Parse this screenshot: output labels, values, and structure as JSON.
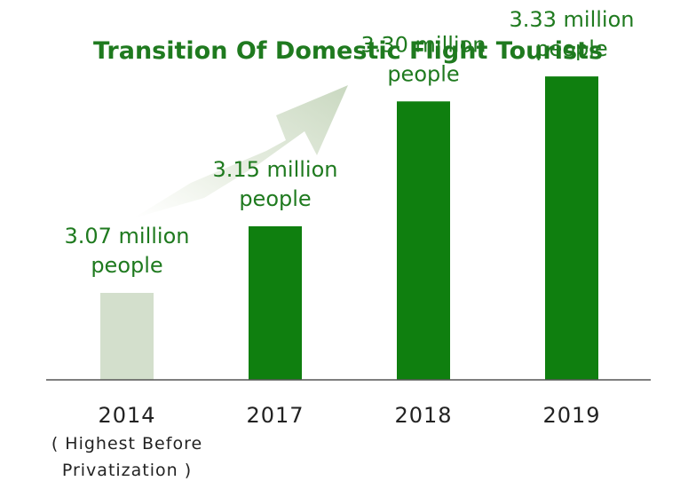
{
  "chart_data": {
    "type": "bar",
    "title": "Transition Of Domestic Flight Tourists",
    "categories": [
      "2014",
      "2017",
      "2018",
      "2019"
    ],
    "category_notes": [
      "( Highest Before",
      "Privatization )"
    ],
    "values": [
      3.07,
      3.15,
      3.3,
      3.33
    ],
    "data_labels": [
      [
        "3.07 million",
        "people"
      ],
      [
        "3.15 million",
        "people"
      ],
      [
        "3.30 million",
        "people"
      ],
      [
        "3.33 million",
        "people"
      ]
    ],
    "unit": "million people",
    "grid": false,
    "legend": "none",
    "colors": {
      "highlight": "#d3dfcc",
      "bar": "#0f7f0f",
      "text": "#1f7a1f",
      "axis": "#555555"
    }
  }
}
